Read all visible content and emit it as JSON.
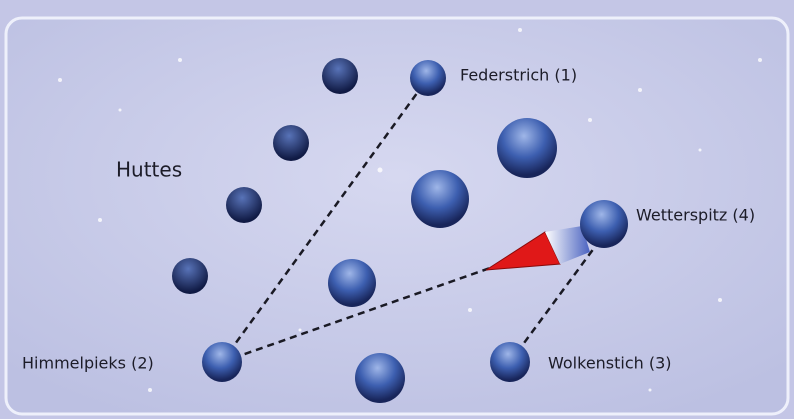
{
  "region_label": "Huttes",
  "locations": [
    {
      "label": "Federstrich (1)"
    },
    {
      "label": "Himmelpieks (2)"
    },
    {
      "label": "Wolkenstich (3)"
    },
    {
      "label": "Wetterspitz (4)"
    }
  ]
}
